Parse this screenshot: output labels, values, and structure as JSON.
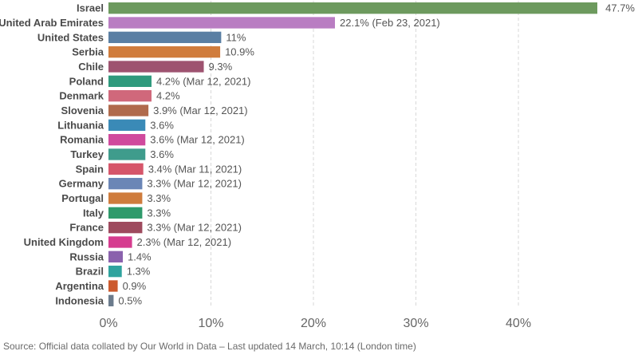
{
  "chart_data": {
    "type": "bar",
    "orientation": "horizontal",
    "title": "",
    "xlabel": "",
    "ylabel": "",
    "xlim": [
      0,
      48
    ],
    "grid": true,
    "categories": [
      "Israel",
      "United Arab Emirates",
      "United States",
      "Serbia",
      "Chile",
      "Poland",
      "Denmark",
      "Slovenia",
      "Lithuania",
      "Romania",
      "Turkey",
      "Spain",
      "Germany",
      "Portugal",
      "Italy",
      "France",
      "United Kingdom",
      "Russia",
      "Brazil",
      "Argentina",
      "Indonesia"
    ],
    "values": [
      47.7,
      22.1,
      11,
      10.9,
      9.3,
      4.2,
      4.2,
      3.9,
      3.6,
      3.6,
      3.6,
      3.4,
      3.3,
      3.3,
      3.3,
      3.3,
      2.3,
      1.4,
      1.3,
      0.9,
      0.5
    ],
    "value_labels": [
      "47.7%",
      "22.1% (Feb 23, 2021)",
      "11%",
      "10.9%",
      "9.3%",
      "4.2% (Mar 12, 2021)",
      "4.2%",
      "3.9% (Mar 12, 2021)",
      "3.6%",
      "3.6% (Mar 12, 2021)",
      "3.6%",
      "3.4% (Mar 11, 2021)",
      "3.3% (Mar 12, 2021)",
      "3.3%",
      "3.3%",
      "3.3% (Mar 12, 2021)",
      "2.3% (Mar 12, 2021)",
      "1.4%",
      "1.3%",
      "0.9%",
      "0.5%"
    ],
    "colors": [
      "#6d9a5e",
      "#b97dc2",
      "#5a7fa3",
      "#d07c3c",
      "#9e5370",
      "#2f9a7d",
      "#d0687b",
      "#b06a4c",
      "#3a8ab7",
      "#d04a9d",
      "#3f9c8c",
      "#d6566a",
      "#6b86b6",
      "#cf7c3d",
      "#2f9a6b",
      "#9e4a5e",
      "#d63c8f",
      "#8a62ad",
      "#2fa39e",
      "#cc5a2e",
      "#6b7b8c"
    ],
    "x_ticks": [
      0,
      10,
      20,
      30,
      40
    ],
    "x_tick_labels": [
      "0%",
      "10%",
      "20%",
      "30%",
      "40%"
    ]
  },
  "footer": {
    "source": "Source: Official data collated by Our World in Data – Last updated 14 March, 10:14 (London time)"
  }
}
